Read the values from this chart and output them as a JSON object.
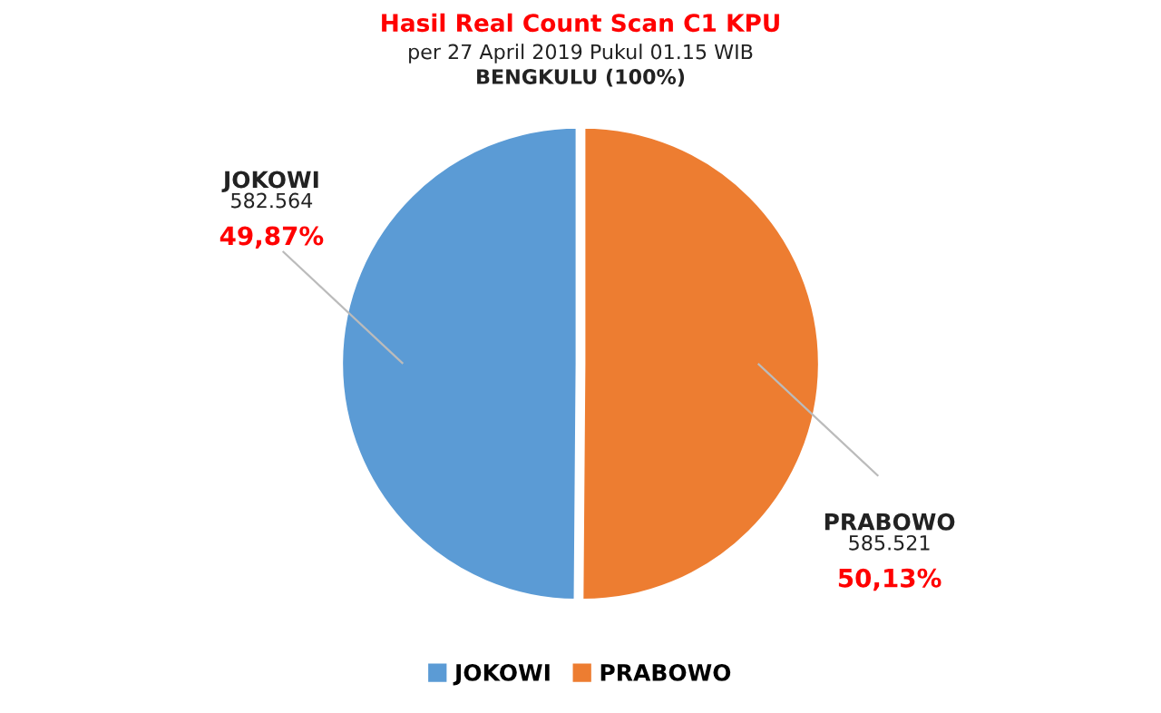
{
  "chart_data": {
    "type": "pie",
    "title": "Hasil Real Count Scan C1 KPU",
    "subtitle": "per 27 April 2019 Pukul 01.15 WIB\nBENGKULU (100%)",
    "categories": [
      "JOKOWI",
      "PRABOWO"
    ],
    "values": [
      582564,
      585521
    ],
    "value_labels": [
      "582.564",
      "585.521"
    ],
    "colors": [
      "#5b9bd5",
      "#ed7d31"
    ],
    "annotations": [
      {
        "text": "49,87%",
        "x": "JOKOWI"
      },
      {
        "text": "50,13%",
        "x": "PRABOWO"
      }
    ],
    "legend": "bottom"
  }
}
